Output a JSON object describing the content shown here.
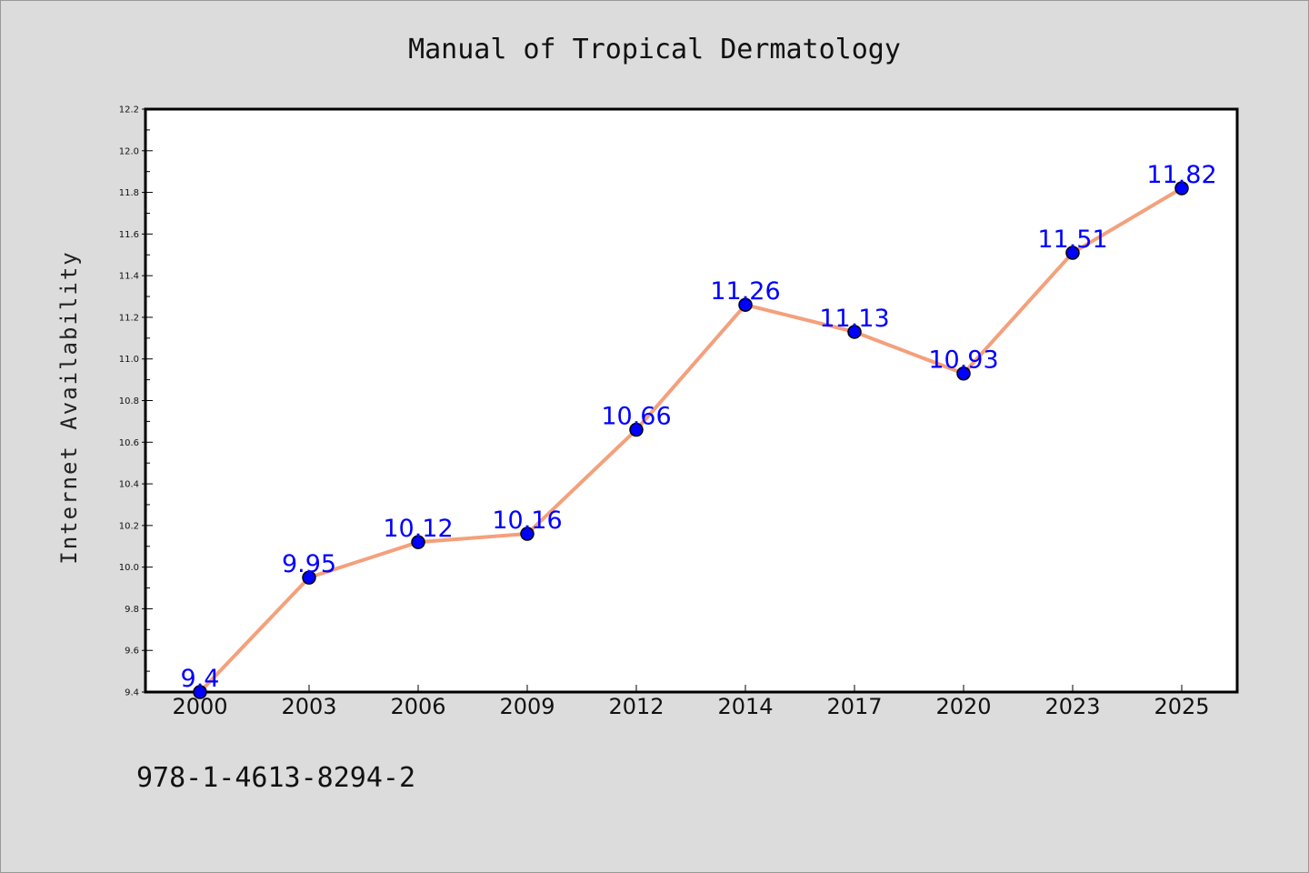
{
  "chart_data": {
    "type": "line",
    "title": "Manual of Tropical Dermatology",
    "xlabel": "",
    "ylabel": "Internet Availability",
    "categories": [
      "2000",
      "2003",
      "2006",
      "2009",
      "2012",
      "2014",
      "2017",
      "2020",
      "2023",
      "2025"
    ],
    "series": [
      {
        "values": [
          9.4,
          9.95,
          10.12,
          10.16,
          10.66,
          11.26,
          11.13,
          10.93,
          11.51,
          11.82
        ],
        "labels": [
          "9.4",
          "9.95",
          "10.12",
          "10.16",
          "10.66",
          "11.26",
          "11.13",
          "10.93",
          "11.51",
          "11.82"
        ],
        "line_color": "#f4a07c",
        "marker_color": "#0000ff"
      }
    ],
    "ylim": [
      9.4,
      12.2
    ],
    "yticks": [
      "9.4",
      "9.6",
      "9.8",
      "10.0",
      "10.2",
      "10.4",
      "10.6",
      "10.8",
      "11.0",
      "11.2",
      "11.4",
      "11.6",
      "11.8",
      "12.0",
      "12.2"
    ],
    "grid": false,
    "legend": "none"
  },
  "footer": {
    "isbn": "978-1-4613-8294-2"
  },
  "colors": {
    "background": "#dcdcdc",
    "plot_background": "#ffffff",
    "axis": "#000000",
    "label": "#0000ff"
  }
}
